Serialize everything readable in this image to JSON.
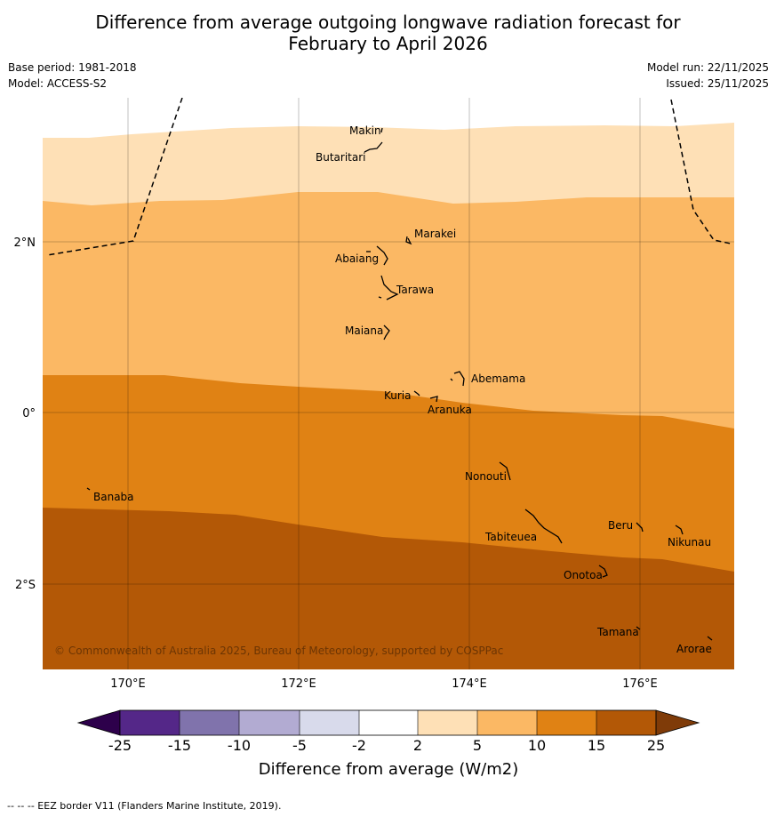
{
  "header": {
    "title_line1": "Difference from average outgoing longwave radiation forecast for",
    "title_line2": "February to April 2026",
    "base_period": "Base period: 1981-2018",
    "model": "Model: ACCESS-S2",
    "model_run": "Model run: 22/11/2025",
    "issued": "Issued: 25/11/2025"
  },
  "map": {
    "lat_labels": [
      "2°N",
      "0°",
      "2°S"
    ],
    "lon_labels": [
      "170°E",
      "172°E",
      "174°E",
      "176°E"
    ],
    "islands": {
      "makin": "Makin",
      "butaritari": "Butaritari",
      "marakei": "Marakei",
      "abaiang": "Abaiang",
      "tarawa": "Tarawa",
      "maiana": "Maiana",
      "abemama": "Abemama",
      "kuria": "Kuria",
      "aranuka": "Aranuka",
      "nonouti": "Nonouti",
      "banaba": "Banaba",
      "beru": "Beru",
      "tabiteuea": "Tabiteuea",
      "nikunau": "Nikunau",
      "onotoa": "Onotoa",
      "tamana": "Tamana",
      "arorae": "Arorae"
    },
    "copyright": "© Commonwealth of Australia 2025, Bureau of Meteorology, supported by COSPPac"
  },
  "colorbar": {
    "label": "Difference from average (W/m2)",
    "ticks": [
      "-25",
      "-15",
      "-10",
      "-5",
      "-2",
      "2",
      "5",
      "10",
      "15",
      "25"
    ],
    "colors": {
      "below_min": "#2d004b",
      "n25_n15": "#542788",
      "n15_n10": "#8073ac",
      "n10_n5": "#b2abd2",
      "n5_n2": "#d8daeb",
      "n2_p2": "#ffffff",
      "p2_p5": "#fee0b6",
      "p5_p10": "#fbb864",
      "p10_p15": "#e08214",
      "p15_p25": "#b35806",
      "above_max": "#7f3b08"
    }
  },
  "footer": {
    "eez_legend": "--  --  -- EEZ border V11 (Flanders Marine Institute, 2019)."
  }
}
